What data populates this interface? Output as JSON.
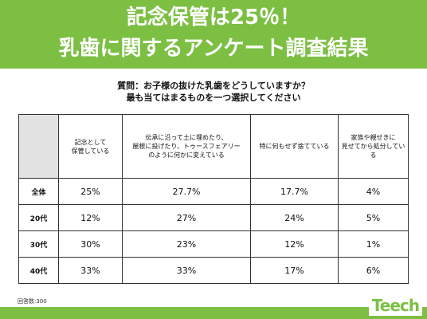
{
  "banner": {
    "line1": "記念保管は25％！",
    "line2": "乳歯に関するアンケート調査結果"
  },
  "question": {
    "line1": "質問：お子様の抜けた乳歯をどうしていますか？",
    "line2": "最も当てはまるものを一つ選択してください"
  },
  "table": {
    "headers": [
      "記念として\n保管している",
      "伝承に沿って土に埋めたり、\n屋根に投げたり、トゥースフェアリー\nのように何かに変えている",
      "特に何もせず捨てている",
      "家族や親せきに\n見せてから処分している"
    ],
    "rows": [
      {
        "label": "全体",
        "values": [
          "25%",
          "27.7%",
          "17.7%",
          "4%"
        ]
      },
      {
        "label": "20代",
        "values": [
          "12%",
          "27%",
          "24%",
          "5%"
        ]
      },
      {
        "label": "30代",
        "values": [
          "30%",
          "23%",
          "12%",
          "1%"
        ]
      },
      {
        "label": "40代",
        "values": [
          "33%",
          "33%",
          "17%",
          "6%"
        ]
      }
    ]
  },
  "footer": {
    "respondents": "回答数:300",
    "logo": "Teech"
  },
  "colors": {
    "brand_green": "#7cbf43",
    "header_corner": "#e2e2e2"
  }
}
